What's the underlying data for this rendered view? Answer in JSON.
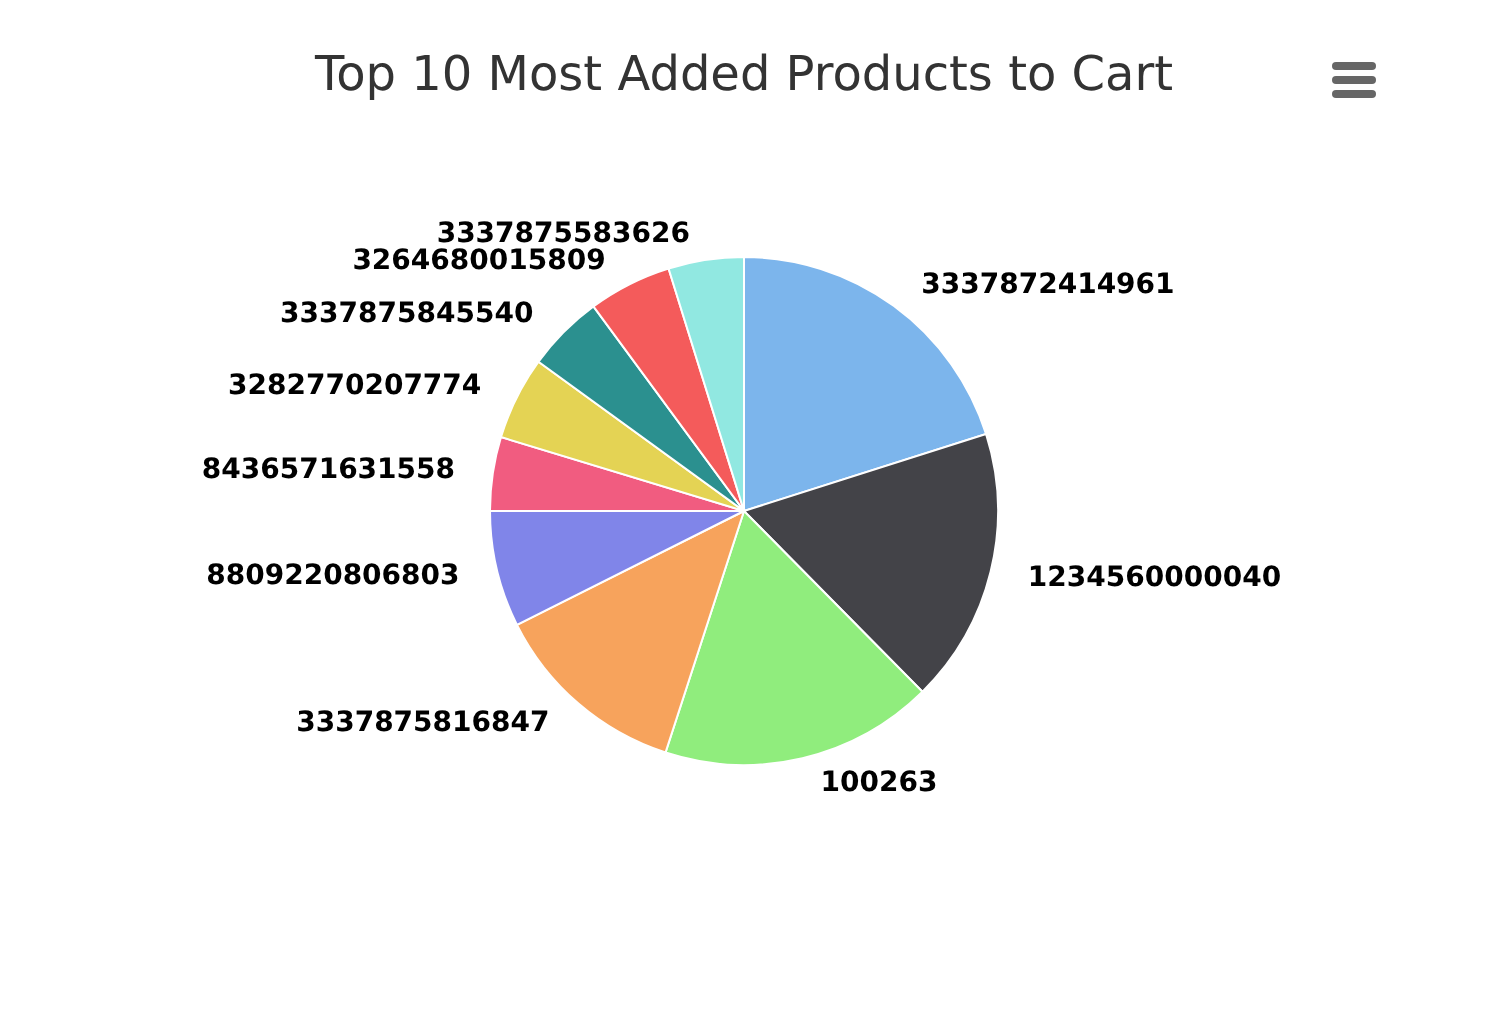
{
  "chart_data": {
    "type": "pie",
    "title": "Top 10 Most Added Products to Cart",
    "categories": [
      "3337872414961",
      "1234560000040",
      "100263",
      "3337875816847",
      "8809220806803",
      "8436571631558",
      "3282770207774",
      "3337875845540",
      "3264680015809",
      "3337875583626"
    ],
    "values": [
      20.1,
      17.5,
      17.4,
      12.6,
      7.4,
      4.7,
      5.3,
      4.9,
      5.3,
      4.8
    ],
    "colors": [
      "#7cb5ec",
      "#434348",
      "#90ed7d",
      "#f7a35c",
      "#8085e9",
      "#f15c80",
      "#e4d354",
      "#2b908f",
      "#f45b5b",
      "#91e8e1"
    ],
    "legend": false
  }
}
